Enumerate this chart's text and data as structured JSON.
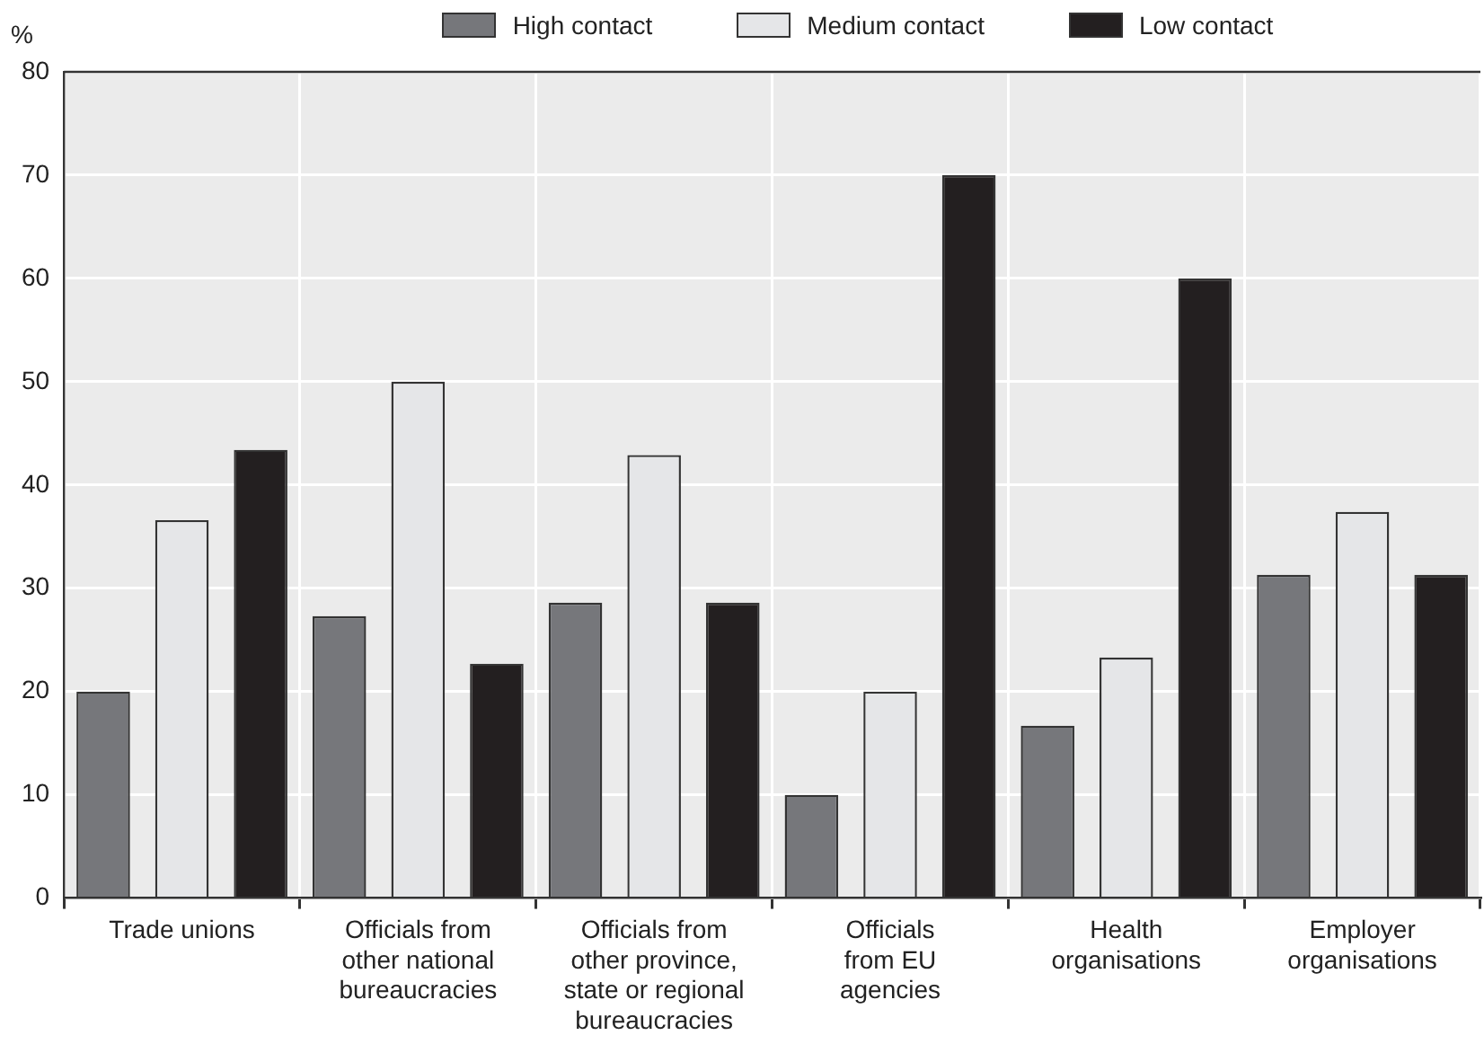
{
  "chart_data": {
    "type": "bar",
    "ylabel": "%",
    "categories": [
      "Trade unions",
      "Officials from\nother national\nbureaucracies",
      "Officials from\nother province,\nstate or regional\nbureaucracies",
      "Officials\nfrom EU\nagencies",
      "Health\norganisations",
      "Employer\norganisations"
    ],
    "series": [
      {
        "name": "High contact",
        "color": "#76777b",
        "values": [
          20,
          27.3,
          28.6,
          10,
          16.7,
          31.3
        ]
      },
      {
        "name": "Medium contact",
        "color": "#e5e6e8",
        "values": [
          36.6,
          50,
          42.9,
          20,
          23.3,
          37.4
        ]
      },
      {
        "name": "Low contact",
        "color": "#231f20",
        "values": [
          43.4,
          22.7,
          28.6,
          70,
          60,
          31.3
        ]
      }
    ],
    "ylim": [
      0,
      80
    ],
    "yticks": [
      0,
      10,
      20,
      30,
      40,
      50,
      60,
      70,
      80
    ],
    "grid": true,
    "legend": "top"
  }
}
